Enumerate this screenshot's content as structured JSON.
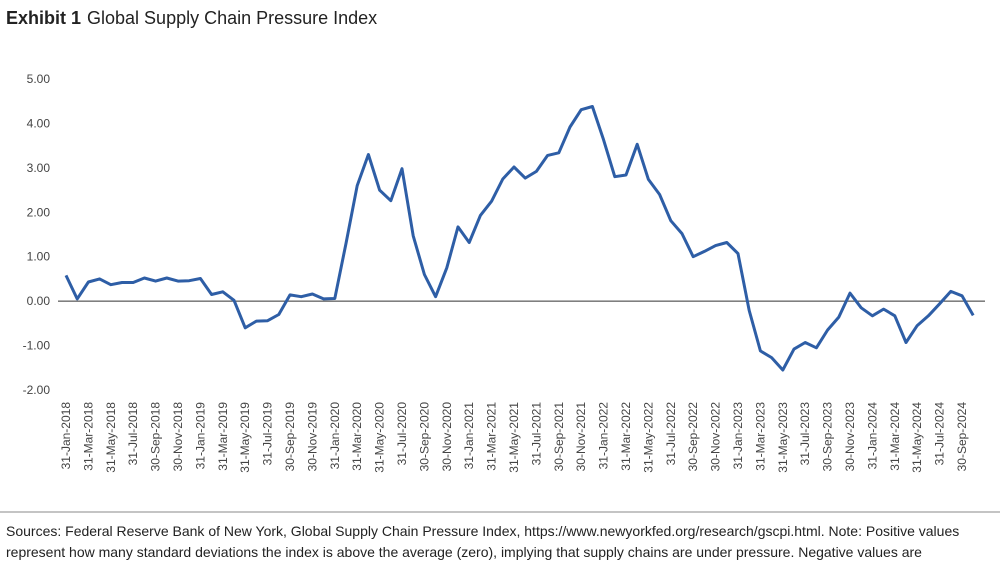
{
  "chart_data": {
    "type": "line",
    "title_prefix": "Exhibit 1",
    "title": "Global Supply Chain Pressure Index",
    "categories": [
      "31-Jan-2018",
      null,
      "31-Mar-2018",
      null,
      "31-May-2018",
      null,
      "31-Jul-2018",
      null,
      "30-Sep-2018",
      null,
      "30-Nov-2018",
      null,
      "31-Jan-2019",
      null,
      "31-Mar-2019",
      null,
      "31-May-2019",
      null,
      "31-Jul-2019",
      null,
      "30-Sep-2019",
      null,
      "30-Nov-2019",
      null,
      "31-Jan-2020",
      null,
      "31-Mar-2020",
      null,
      "31-May-2020",
      null,
      "31-Jul-2020",
      null,
      "30-Sep-2020",
      null,
      "30-Nov-2020",
      null,
      "31-Jan-2021",
      null,
      "31-Mar-2021",
      null,
      "31-May-2021",
      null,
      "31-Jul-2021",
      null,
      "30-Sep-2021",
      null,
      "30-Nov-2021",
      null,
      "31-Jan-2022",
      null,
      "31-Mar-2022",
      null,
      "31-May-2022",
      null,
      "31-Jul-2022",
      null,
      "30-Sep-2022",
      null,
      "30-Nov-2022",
      null,
      "31-Jan-2023",
      null,
      "31-Mar-2023",
      null,
      "31-May-2023",
      null,
      "31-Jul-2023",
      null,
      "30-Sep-2023",
      null,
      "30-Nov-2023",
      null,
      "31-Jan-2024",
      null,
      "31-Mar-2024",
      null,
      "31-May-2024",
      null,
      "31-Jul-2024",
      null,
      "30-Sep-2024",
      null
    ],
    "values": [
      0.58,
      0.05,
      0.43,
      0.5,
      0.37,
      0.42,
      0.42,
      0.52,
      0.45,
      0.52,
      0.45,
      0.46,
      0.51,
      0.15,
      0.21,
      0.02,
      -0.6,
      -0.45,
      -0.44,
      -0.3,
      0.14,
      0.1,
      0.16,
      0.05,
      0.06,
      1.3,
      2.6,
      3.3,
      2.5,
      2.26,
      2.98,
      1.47,
      0.6,
      0.1,
      0.75,
      1.67,
      1.32,
      1.93,
      2.25,
      2.75,
      3.02,
      2.77,
      2.92,
      3.28,
      3.34,
      3.92,
      4.31,
      4.38,
      3.63,
      2.8,
      2.84,
      3.53,
      2.74,
      2.4,
      1.81,
      1.52,
      1.0,
      1.12,
      1.25,
      1.32,
      1.07,
      -0.21,
      -1.12,
      -1.27,
      -1.55,
      -1.08,
      -0.93,
      -1.05,
      -0.65,
      -0.36,
      0.18,
      -0.15,
      -0.33,
      -0.18,
      -0.33,
      -0.93,
      -0.55,
      -0.33,
      -0.06,
      0.22,
      0.12,
      -0.32
    ],
    "color": "#2e5ea6",
    "ylim": [
      -2,
      5
    ],
    "yticks": [
      {
        "value": 5,
        "label": "5.00"
      },
      {
        "value": 4,
        "label": "4.00"
      },
      {
        "value": 3,
        "label": "3.00"
      },
      {
        "value": 2,
        "label": "2.00"
      },
      {
        "value": 1,
        "label": "1.00"
      },
      {
        "value": 0,
        "label": "0.00"
      },
      {
        "value": -1,
        "label": "-1.00"
      },
      {
        "value": -2,
        "label": "-2.00"
      }
    ],
    "zero_line": true,
    "footer_lines": [
      "Sources: Federal Reserve Bank of New York, Global Supply Chain Pressure Index, https://www.newyorkfed.org/research/gscpi.html. Note: Positive values",
      "represent how many standard deviations the index is above the average (zero), implying that supply chains are under pressure.  Negative values are"
    ]
  }
}
